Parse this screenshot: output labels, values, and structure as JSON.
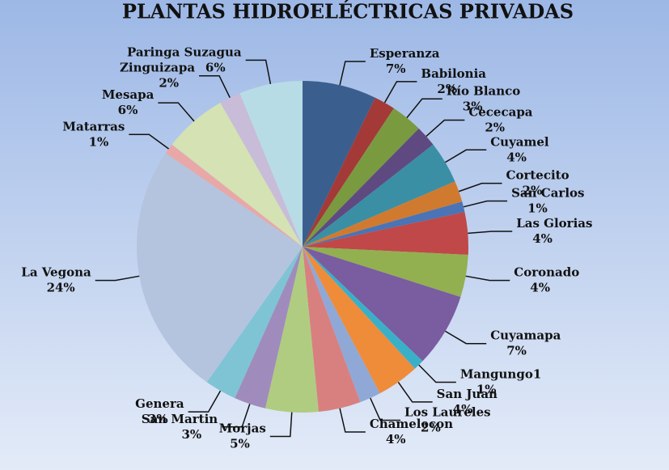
{
  "chart_data": {
    "type": "pie",
    "title": "PLANTAS HIDROELÉCTRICAS PRIVADAS",
    "categories": [
      "Esperanza",
      "Babilonia",
      "Río Blanco",
      "Cececapa",
      "Cuyamel",
      "Cortecito",
      "San Carlos",
      "Las Glorias",
      "Coronado",
      "Cuyamapa",
      "Mangungo1",
      "San Juan",
      "Los Laureles",
      "Chamelecon",
      "Morjas",
      "San Martin",
      "Genera",
      "La Vegona",
      "Matarras",
      "Mesapa",
      "Zinguizapa",
      "Paringa Suzagua"
    ],
    "values": [
      7,
      2,
      3,
      2,
      4,
      2,
      1,
      4,
      4,
      7,
      1,
      4,
      2,
      4,
      5,
      3,
      3,
      24,
      1,
      6,
      2,
      6
    ],
    "value_labels": [
      "7%",
      "2%",
      "3%",
      "2%",
      "4%",
      "2%",
      "1%",
      "4%",
      "4%",
      "7%",
      "1%",
      "4%",
      "2%",
      "4%",
      "5%",
      "3%",
      "3%",
      "24%",
      "1%",
      "6%",
      "2%",
      "6%"
    ],
    "colors": [
      "#3a5f8f",
      "#a33a38",
      "#7a9a40",
      "#5e4a80",
      "#3a8fa5",
      "#d07a30",
      "#4a74b5",
      "#c04848",
      "#92b050",
      "#7a5ca0",
      "#3ab0c8",
      "#ee8c3a",
      "#8fa8d6",
      "#d88080",
      "#b0cc80",
      "#9f8cbc",
      "#7fc4d4",
      "#b4c4de",
      "#e8a8a8",
      "#d4e2b4",
      "#c8bcd8",
      "#b8dce6"
    ]
  }
}
